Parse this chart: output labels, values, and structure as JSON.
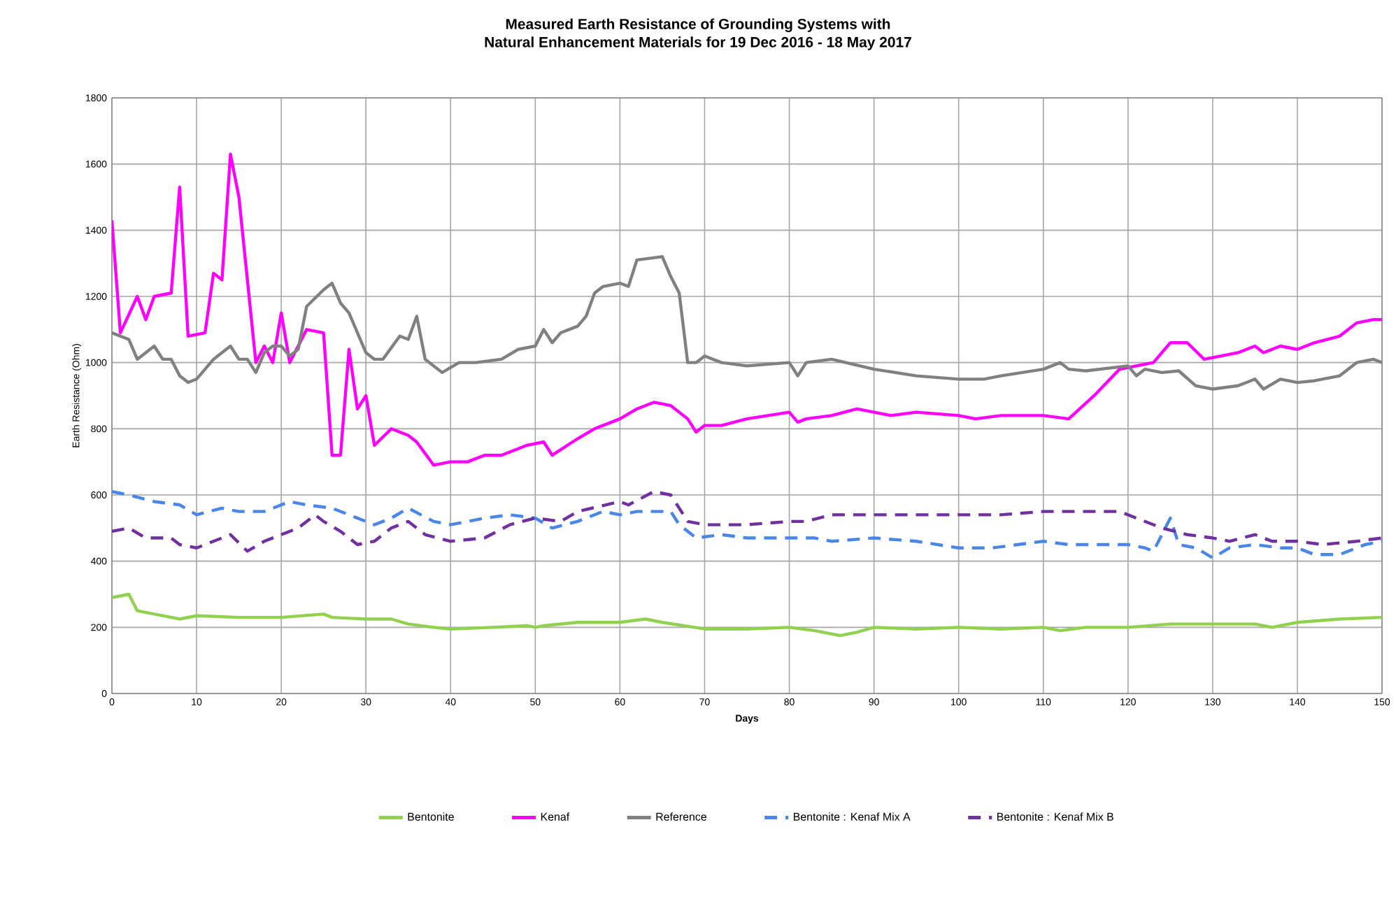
{
  "chart_data": {
    "type": "line",
    "title": "Measured Earth Resistance of Grounding Systems with\nNatural Enhancement Materials for 19 Dec 2016 - 18 May 2017",
    "xlabel": "Days",
    "ylabel": "Earth Resistance (Ohm)",
    "xlim": [
      0,
      150
    ],
    "xticks": [
      0,
      10,
      20,
      30,
      40,
      50,
      60,
      70,
      80,
      90,
      100,
      110,
      120,
      130,
      140,
      150
    ],
    "ylim": [
      0,
      1800
    ],
    "yticks": [
      0,
      200,
      400,
      600,
      800,
      1000,
      1200,
      1400,
      1600,
      1800
    ],
    "grid": true,
    "legend": "bottom",
    "marker": "none",
    "series": [
      {
        "name": "Bentonite",
        "color": "#92d050",
        "line_style": "solid",
        "x": [
          0,
          2,
          3,
          5,
          8,
          10,
          15,
          20,
          25,
          26,
          30,
          33,
          35,
          38,
          40,
          45,
          49,
          50,
          51,
          55,
          60,
          63,
          65,
          70,
          75,
          80,
          83,
          86,
          88,
          90,
          95,
          100,
          105,
          110,
          112,
          115,
          120,
          125,
          130,
          135,
          137,
          140,
          145,
          150
        ],
        "values": [
          290,
          300,
          250,
          240,
          225,
          235,
          230,
          230,
          240,
          230,
          225,
          225,
          210,
          200,
          195,
          200,
          205,
          200,
          205,
          215,
          215,
          225,
          215,
          195,
          195,
          200,
          190,
          175,
          185,
          200,
          195,
          200,
          195,
          200,
          190,
          200,
          200,
          210,
          210,
          210,
          200,
          215,
          225,
          230
        ]
      },
      {
        "name": "Kenaf",
        "color": "#ff00ff",
        "line_style": "solid",
        "x": [
          0,
          1,
          3,
          4,
          5,
          7,
          8,
          9,
          11,
          12,
          13,
          14,
          15,
          17,
          18,
          19,
          20,
          21,
          23,
          25,
          26,
          27,
          28,
          29,
          30,
          31,
          33,
          35,
          36,
          38,
          40,
          42,
          44,
          46,
          49,
          51,
          52,
          55,
          57,
          59,
          60,
          62,
          64,
          66,
          68,
          69,
          70,
          72,
          75,
          80,
          81,
          82,
          85,
          88,
          90,
          92,
          95,
          100,
          102,
          105,
          110,
          113,
          116,
          119,
          121,
          123,
          125,
          127,
          129,
          131,
          133,
          135,
          136,
          138,
          140,
          142,
          145,
          147,
          149,
          150
        ],
        "values": [
          1430,
          1090,
          1200,
          1130,
          1200,
          1210,
          1530,
          1080,
          1090,
          1270,
          1250,
          1630,
          1500,
          1000,
          1050,
          1000,
          1150,
          1000,
          1100,
          1090,
          720,
          720,
          1040,
          860,
          900,
          750,
          800,
          780,
          760,
          690,
          700,
          700,
          720,
          720,
          750,
          760,
          720,
          770,
          800,
          820,
          830,
          860,
          880,
          870,
          830,
          790,
          810,
          810,
          830,
          850,
          820,
          830,
          840,
          860,
          850,
          840,
          850,
          840,
          830,
          840,
          840,
          830,
          900,
          980,
          990,
          1000,
          1060,
          1060,
          1010,
          1020,
          1030,
          1050,
          1030,
          1050,
          1040,
          1060,
          1080,
          1120,
          1130,
          1130
        ]
      },
      {
        "name": "Reference",
        "color": "#808080",
        "line_style": "solid",
        "x": [
          0,
          2,
          3,
          5,
          6,
          7,
          8,
          9,
          10,
          12,
          14,
          15,
          16,
          17,
          18,
          19,
          20,
          21,
          22,
          23,
          25,
          26,
          27,
          28,
          30,
          31,
          32,
          34,
          35,
          36,
          37,
          39,
          41,
          43,
          46,
          48,
          50,
          51,
          52,
          53,
          55,
          56,
          57,
          58,
          60,
          61,
          62,
          65,
          66,
          67,
          68,
          69,
          70,
          72,
          75,
          80,
          81,
          82,
          85,
          90,
          95,
          100,
          103,
          105,
          110,
          112,
          113,
          115,
          120,
          121,
          122,
          124,
          126,
          128,
          130,
          133,
          135,
          136,
          138,
          140,
          142,
          145,
          147,
          149,
          150
        ],
        "values": [
          1090,
          1070,
          1010,
          1050,
          1010,
          1010,
          960,
          940,
          950,
          1010,
          1050,
          1010,
          1010,
          970,
          1030,
          1050,
          1050,
          1020,
          1040,
          1170,
          1220,
          1240,
          1180,
          1150,
          1030,
          1010,
          1010,
          1080,
          1070,
          1140,
          1010,
          970,
          1000,
          1000,
          1010,
          1040,
          1050,
          1100,
          1060,
          1090,
          1110,
          1140,
          1210,
          1230,
          1240,
          1230,
          1310,
          1320,
          1260,
          1210,
          1000,
          1000,
          1020,
          1000,
          990,
          1000,
          960,
          1000,
          1010,
          980,
          960,
          950,
          950,
          960,
          980,
          1000,
          980,
          975,
          990,
          960,
          980,
          970,
          975,
          930,
          920,
          930,
          950,
          920,
          950,
          940,
          945,
          960,
          1000,
          1010,
          1000
        ]
      },
      {
        "name": "Bentonite : Kenaf Mix A",
        "color": "#4a86e8",
        "line_style": "dashed",
        "x": [
          0,
          2,
          5,
          8,
          10,
          13,
          15,
          18,
          21,
          23,
          26,
          29,
          31,
          33,
          35,
          38,
          40,
          42,
          44,
          47,
          50,
          52,
          55,
          58,
          60,
          62,
          65,
          66,
          67,
          69,
          72,
          75,
          80,
          83,
          85,
          90,
          95,
          100,
          104,
          107,
          110,
          113,
          115,
          120,
          122,
          123,
          125,
          126,
          128,
          130,
          132,
          135,
          138,
          140,
          142,
          145,
          148,
          150
        ],
        "values": [
          610,
          600,
          580,
          570,
          540,
          560,
          550,
          550,
          580,
          570,
          560,
          530,
          510,
          530,
          560,
          520,
          510,
          520,
          530,
          540,
          530,
          500,
          520,
          550,
          540,
          550,
          550,
          550,
          510,
          470,
          480,
          470,
          470,
          470,
          460,
          470,
          460,
          440,
          440,
          450,
          460,
          450,
          450,
          450,
          440,
          430,
          530,
          450,
          440,
          410,
          440,
          450,
          440,
          440,
          420,
          420,
          450,
          460
        ]
      },
      {
        "name": "Bentonite : Kenaf Mix B",
        "color": "#7030a0",
        "line_style": "dashed",
        "x": [
          0,
          2,
          4,
          7,
          8,
          10,
          12,
          14,
          16,
          18,
          20,
          22,
          24,
          25,
          27,
          29,
          31,
          33,
          35,
          37,
          40,
          44,
          47,
          50,
          53,
          55,
          60,
          61,
          64,
          66,
          67,
          68,
          70,
          75,
          80,
          82,
          85,
          90,
          95,
          100,
          105,
          110,
          115,
          119,
          121,
          124,
          127,
          130,
          132,
          135,
          137,
          140,
          143,
          147,
          150
        ],
        "values": [
          490,
          500,
          470,
          470,
          450,
          440,
          460,
          480,
          430,
          460,
          480,
          500,
          540,
          520,
          490,
          450,
          460,
          500,
          520,
          480,
          460,
          470,
          510,
          530,
          520,
          550,
          580,
          570,
          610,
          600,
          560,
          520,
          510,
          510,
          520,
          520,
          540,
          540,
          540,
          540,
          540,
          550,
          550,
          550,
          530,
          500,
          480,
          470,
          460,
          480,
          460,
          460,
          450,
          460,
          470
        ]
      }
    ]
  }
}
